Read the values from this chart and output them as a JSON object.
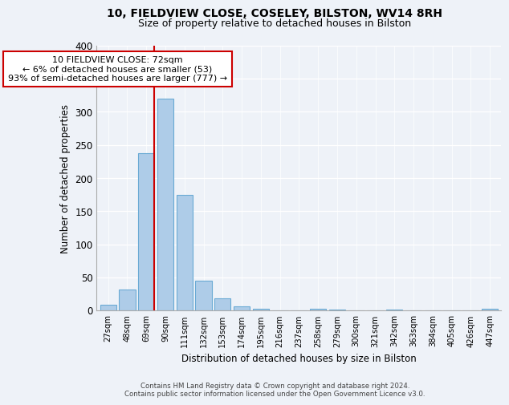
{
  "title1": "10, FIELDVIEW CLOSE, COSELEY, BILSTON, WV14 8RH",
  "title2": "Size of property relative to detached houses in Bilston",
  "xlabel": "Distribution of detached houses by size in Bilston",
  "ylabel": "Number of detached properties",
  "bar_labels": [
    "27sqm",
    "48sqm",
    "69sqm",
    "90sqm",
    "111sqm",
    "132sqm",
    "153sqm",
    "174sqm",
    "195sqm",
    "216sqm",
    "237sqm",
    "258sqm",
    "279sqm",
    "300sqm",
    "321sqm",
    "342sqm",
    "363sqm",
    "384sqm",
    "405sqm",
    "426sqm",
    "447sqm"
  ],
  "bar_values": [
    8,
    32,
    238,
    320,
    175,
    45,
    18,
    6,
    2,
    0,
    0,
    3,
    1,
    0,
    0,
    1,
    0,
    0,
    0,
    0,
    2
  ],
  "bar_color": "#aecce8",
  "bar_edge_color": "#6aaad4",
  "vline_index": 2,
  "marker_label": "10 FIELDVIEW CLOSE: 72sqm",
  "annotation_line1": "← 6% of detached houses are smaller (53)",
  "annotation_line2": "93% of semi-detached houses are larger (777) →",
  "vline_color": "#cc0000",
  "annotation_box_edge": "#cc0000",
  "ylim": [
    0,
    400
  ],
  "yticks": [
    0,
    50,
    100,
    150,
    200,
    250,
    300,
    350,
    400
  ],
  "footer1": "Contains HM Land Registry data © Crown copyright and database right 2024.",
  "footer2": "Contains public sector information licensed under the Open Government Licence v3.0.",
  "bg_color": "#eef2f8"
}
